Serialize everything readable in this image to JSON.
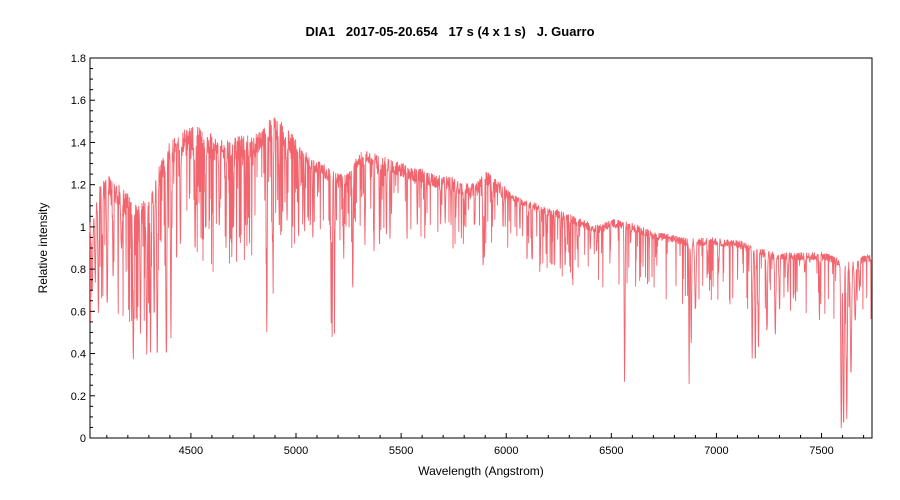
{
  "chart_data": {
    "type": "line",
    "title": "DIA1   2017-05-20.654   17 s (4 x 1 s)   J. Guarro",
    "xlabel": "Wavelength (Angstrom)",
    "ylabel": "Relative intensity",
    "xlim": [
      4020,
      7740
    ],
    "ylim": [
      0,
      1.8
    ],
    "x_ticks": [
      "4500",
      "5000",
      "5500",
      "6000",
      "6500",
      "7000",
      "7500"
    ],
    "y_ticks": [
      "0",
      "0.2",
      "0.4",
      "0.6",
      "0.8",
      "1",
      "1.2",
      "1.4",
      "1.6",
      "1.8"
    ],
    "grid": false,
    "series": [
      {
        "color": "#f2646e",
        "continuum": [
          [
            4020,
            1.0
          ],
          [
            4060,
            1.15
          ],
          [
            4100,
            1.2
          ],
          [
            4150,
            1.15
          ],
          [
            4200,
            1.1
          ],
          [
            4250,
            1.05
          ],
          [
            4300,
            1.1
          ],
          [
            4350,
            1.25
          ],
          [
            4400,
            1.35
          ],
          [
            4450,
            1.4
          ],
          [
            4500,
            1.42
          ],
          [
            4550,
            1.42
          ],
          [
            4600,
            1.38
          ],
          [
            4650,
            1.35
          ],
          [
            4700,
            1.36
          ],
          [
            4750,
            1.38
          ],
          [
            4800,
            1.38
          ],
          [
            4850,
            1.42
          ],
          [
            4900,
            1.48
          ],
          [
            4950,
            1.42
          ],
          [
            5000,
            1.36
          ],
          [
            5050,
            1.32
          ],
          [
            5100,
            1.28
          ],
          [
            5150,
            1.25
          ],
          [
            5200,
            1.22
          ],
          [
            5250,
            1.22
          ],
          [
            5300,
            1.32
          ],
          [
            5350,
            1.33
          ],
          [
            5400,
            1.3
          ],
          [
            5450,
            1.29
          ],
          [
            5500,
            1.27
          ],
          [
            5550,
            1.25
          ],
          [
            5600,
            1.24
          ],
          [
            5650,
            1.22
          ],
          [
            5700,
            1.21
          ],
          [
            5750,
            1.2
          ],
          [
            5800,
            1.18
          ],
          [
            5850,
            1.17
          ],
          [
            5900,
            1.24
          ],
          [
            5950,
            1.19
          ],
          [
            6000,
            1.16
          ],
          [
            6050,
            1.13
          ],
          [
            6100,
            1.11
          ],
          [
            6150,
            1.09
          ],
          [
            6200,
            1.07
          ],
          [
            6250,
            1.06
          ],
          [
            6300,
            1.04
          ],
          [
            6350,
            1.02
          ],
          [
            6400,
            1.0
          ],
          [
            6450,
            0.99
          ],
          [
            6500,
            1.02
          ],
          [
            6550,
            1.01
          ],
          [
            6600,
            1.0
          ],
          [
            6650,
            0.98
          ],
          [
            6700,
            0.96
          ],
          [
            6750,
            0.95
          ],
          [
            6800,
            0.94
          ],
          [
            6850,
            0.93
          ],
          [
            6900,
            0.93
          ],
          [
            6950,
            0.93
          ],
          [
            7000,
            0.93
          ],
          [
            7050,
            0.92
          ],
          [
            7100,
            0.92
          ],
          [
            7150,
            0.9
          ],
          [
            7200,
            0.88
          ],
          [
            7250,
            0.87
          ],
          [
            7300,
            0.86
          ],
          [
            7350,
            0.86
          ],
          [
            7400,
            0.86
          ],
          [
            7450,
            0.86
          ],
          [
            7500,
            0.86
          ],
          [
            7550,
            0.85
          ],
          [
            7600,
            0.82
          ],
          [
            7650,
            0.82
          ],
          [
            7700,
            0.85
          ],
          [
            7740,
            0.85
          ]
        ],
        "absorption_lines": [
          [
            4030,
            0.7,
            6
          ],
          [
            4045,
            0.75,
            5
          ],
          [
            4060,
            0.6,
            5
          ],
          [
            4077,
            0.9,
            5
          ],
          [
            4102,
            0.62,
            5
          ],
          [
            4130,
            0.75,
            4
          ],
          [
            4170,
            0.9,
            5
          ],
          [
            4226,
            0.38,
            5
          ],
          [
            4260,
            0.5,
            4
          ],
          [
            4290,
            0.4,
            5
          ],
          [
            4308,
            0.42,
            4
          ],
          [
            4325,
            0.6,
            4
          ],
          [
            4340,
            0.4,
            5
          ],
          [
            4383,
            0.38,
            5
          ],
          [
            4405,
            0.48,
            4
          ],
          [
            4450,
            0.9,
            4
          ],
          [
            4520,
            0.9,
            4
          ],
          [
            4570,
            0.98,
            4
          ],
          [
            4635,
            1.0,
            4
          ],
          [
            4667,
            0.9,
            3
          ],
          [
            4703,
            1.0,
            3
          ],
          [
            4760,
            0.98,
            3
          ],
          [
            4861,
            0.5,
            4
          ],
          [
            4891,
            0.68,
            3
          ],
          [
            4920,
            1.0,
            3
          ],
          [
            4957,
            1.02,
            3
          ],
          [
            5012,
            0.95,
            3
          ],
          [
            5041,
            0.98,
            3
          ],
          [
            5080,
            0.95,
            3
          ],
          [
            5167,
            0.55,
            3
          ],
          [
            5172,
            0.47,
            3
          ],
          [
            5183,
            0.5,
            3
          ],
          [
            5227,
            0.85,
            3
          ],
          [
            5270,
            0.7,
            4
          ],
          [
            5328,
            0.9,
            3
          ],
          [
            5371,
            0.88,
            3
          ],
          [
            5397,
            0.9,
            3
          ],
          [
            5430,
            0.95,
            3
          ],
          [
            5447,
            0.93,
            3
          ],
          [
            5528,
            0.95,
            3
          ],
          [
            5577,
            1.0,
            3
          ],
          [
            5615,
            1.0,
            3
          ],
          [
            5688,
            1.02,
            3
          ],
          [
            5710,
            1.02,
            3
          ],
          [
            5760,
            1.05,
            3
          ],
          [
            5800,
            1.0,
            3
          ],
          [
            5850,
            1.0,
            3
          ],
          [
            5890,
            0.8,
            4
          ],
          [
            5896,
            0.85,
            3
          ],
          [
            5934,
            1.0,
            3
          ],
          [
            5985,
            1.0,
            3
          ],
          [
            6065,
            0.98,
            3
          ],
          [
            6103,
            0.95,
            3
          ],
          [
            6122,
            0.85,
            3
          ],
          [
            6162,
            0.82,
            3
          ],
          [
            6190,
            0.88,
            3
          ],
          [
            6230,
            0.9,
            3
          ],
          [
            6258,
            0.85,
            3
          ],
          [
            6280,
            0.8,
            3
          ],
          [
            6302,
            0.85,
            3
          ],
          [
            6338,
            0.9,
            3
          ],
          [
            6400,
            0.9,
            3
          ],
          [
            6430,
            0.88,
            3
          ],
          [
            6495,
            0.88,
            3
          ],
          [
            6563,
            0.27,
            4
          ],
          [
            6592,
            0.92,
            3
          ],
          [
            6680,
            0.9,
            3
          ],
          [
            6870,
            0.27,
            3
          ],
          [
            6880,
            0.45,
            4
          ],
          [
            6900,
            0.6,
            6
          ],
          [
            6960,
            0.78,
            4
          ],
          [
            7010,
            0.78,
            4
          ],
          [
            7170,
            0.38,
            4
          ],
          [
            7185,
            0.35,
            4
          ],
          [
            7200,
            0.42,
            4
          ],
          [
            7240,
            0.5,
            5
          ],
          [
            7280,
            0.5,
            5
          ],
          [
            7300,
            0.6,
            4
          ],
          [
            7340,
            0.7,
            4
          ],
          [
            7420,
            0.78,
            4
          ],
          [
            7490,
            0.55,
            3
          ],
          [
            7594,
            0.04,
            5
          ],
          [
            7605,
            0.05,
            5
          ],
          [
            7620,
            0.1,
            5
          ],
          [
            7640,
            0.3,
            6
          ],
          [
            7660,
            0.55,
            6
          ],
          [
            7680,
            0.7,
            5
          ]
        ]
      }
    ]
  }
}
